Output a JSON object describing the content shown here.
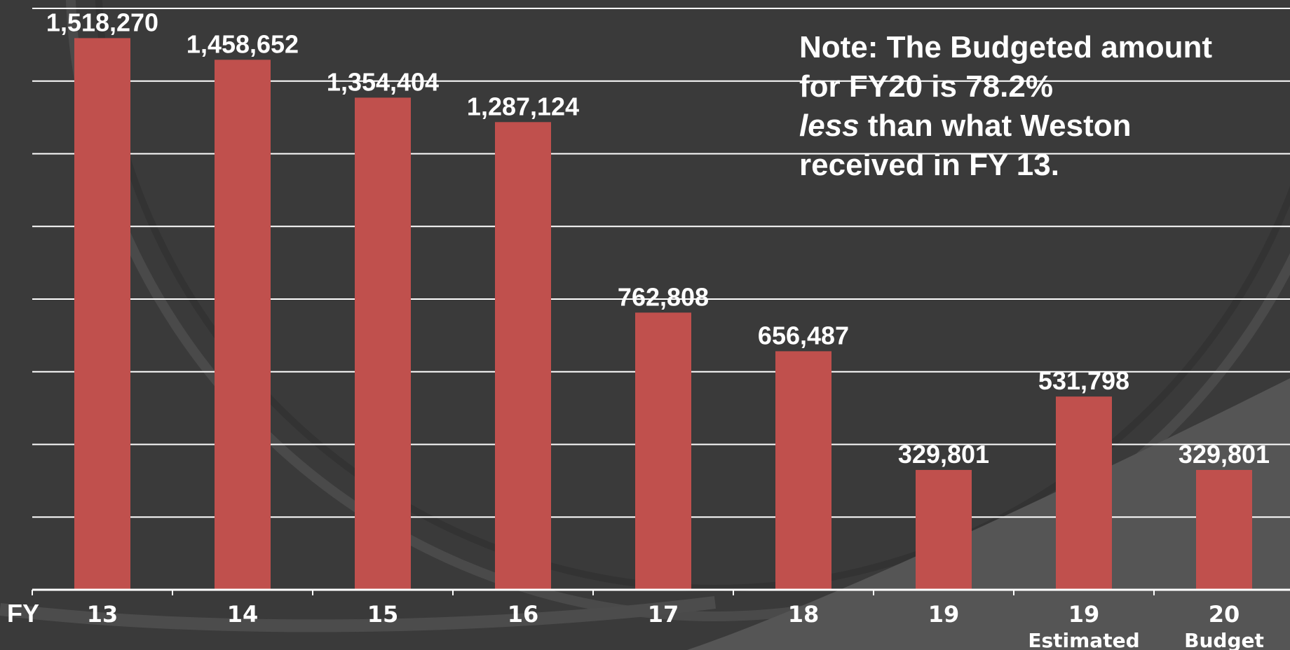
{
  "note": {
    "part1": "Note:  The Budgeted amount for FY20 is 78.2%",
    "emph": "less",
    "part2": "than what Weston received in FY 13."
  },
  "colors": {
    "background": "#3a3a3a",
    "bar": "#c0504d",
    "grid": "#ffffff",
    "text": "#ffffff"
  },
  "chart_data": {
    "type": "bar",
    "xlabel": "FY",
    "categories": [
      "13",
      "14",
      "15",
      "16",
      "17",
      "18",
      "19",
      "19",
      "20"
    ],
    "category_sublabels": [
      "",
      "",
      "",
      "",
      "",
      "",
      "",
      "Estimated",
      "Budget"
    ],
    "values": [
      1518270,
      1458652,
      1354404,
      1287124,
      762808,
      656487,
      329801,
      531798,
      329801
    ],
    "value_labels": [
      "1,518,270",
      "1,458,652",
      "1,354,404",
      "1,287,124",
      "762,808",
      "656,487",
      "329,801",
      "531,798",
      "329,801"
    ],
    "ylim": [
      0,
      1600000
    ],
    "grid": true,
    "y_tick_labels_shown": false
  }
}
